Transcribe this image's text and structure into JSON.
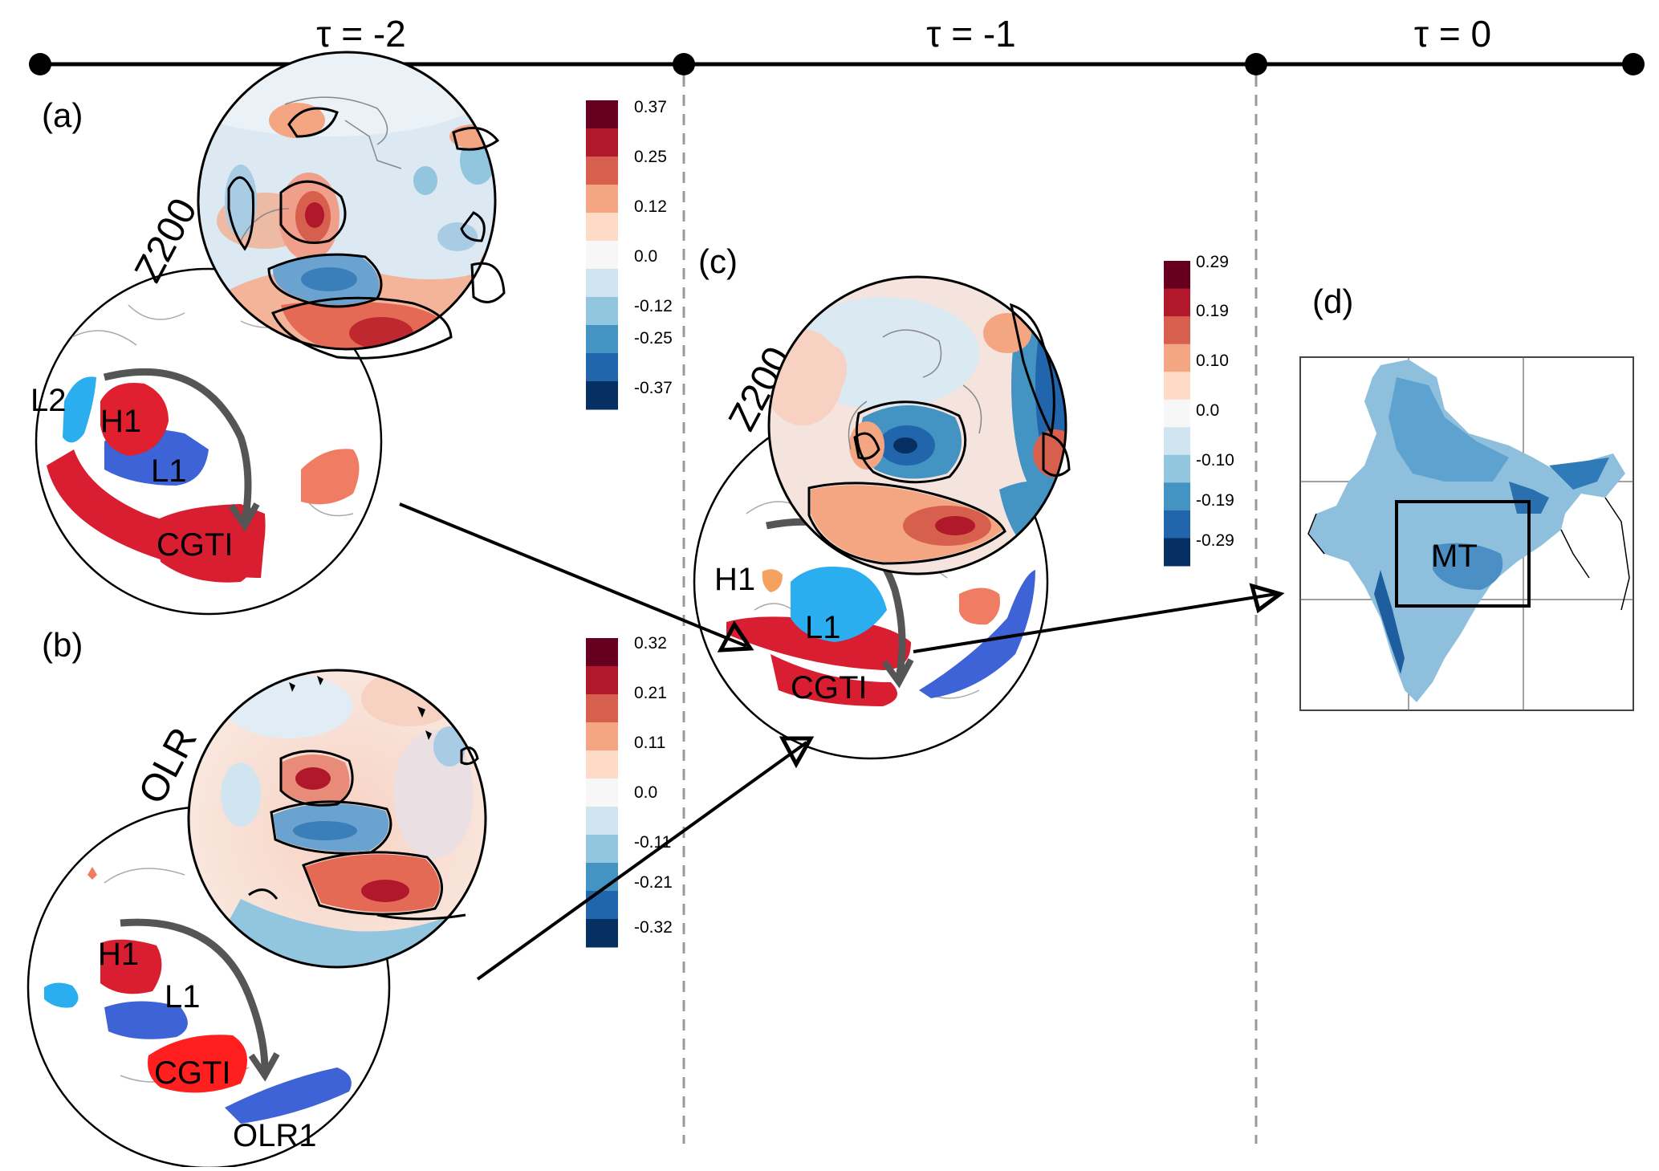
{
  "timeline": {
    "t_m2": "τ = -2",
    "t_m1": "τ = -1",
    "t_0": "τ = 0"
  },
  "panels": {
    "a": {
      "label": "(a)",
      "variable": "Z200",
      "colorbar_ticks": [
        "0.37",
        "0.25",
        "0.12",
        "0.0",
        "-0.12",
        "-0.25",
        "-0.37"
      ],
      "regions": {
        "L2": "L2",
        "H1": "H1",
        "L1": "L1",
        "CGTI": "CGTI"
      }
    },
    "b": {
      "label": "(b)",
      "variable": "OLR",
      "colorbar_ticks": [
        "0.32",
        "0.21",
        "0.11",
        "0.0",
        "-0.11",
        "-0.21",
        "-0.32"
      ],
      "regions": {
        "H1": "H1",
        "L1": "L1",
        "CGTI": "CGTI",
        "OLR1": "OLR1"
      }
    },
    "c": {
      "label": "(c)",
      "variable": "Z200",
      "colorbar_ticks": [
        "0.29",
        "0.19",
        "0.10",
        "0.0",
        "-0.10",
        "-0.19",
        "-0.29"
      ],
      "regions": {
        "H1": "H1",
        "L1": "L1",
        "CGTI": "CGTI"
      }
    },
    "d": {
      "label": "(d)",
      "box_label": "MT"
    }
  },
  "colors": {
    "colorbar": [
      "#67001f",
      "#b2182b",
      "#d6604d",
      "#f4a582",
      "#fddbc7",
      "#f7f7f7",
      "#d1e5f0",
      "#92c5de",
      "#4393c3",
      "#2166ac",
      "#053061"
    ],
    "high": "#e0202e",
    "low": "#3e63d6",
    "light_low": "#2aaef0",
    "salmon": "#f07c64"
  }
}
